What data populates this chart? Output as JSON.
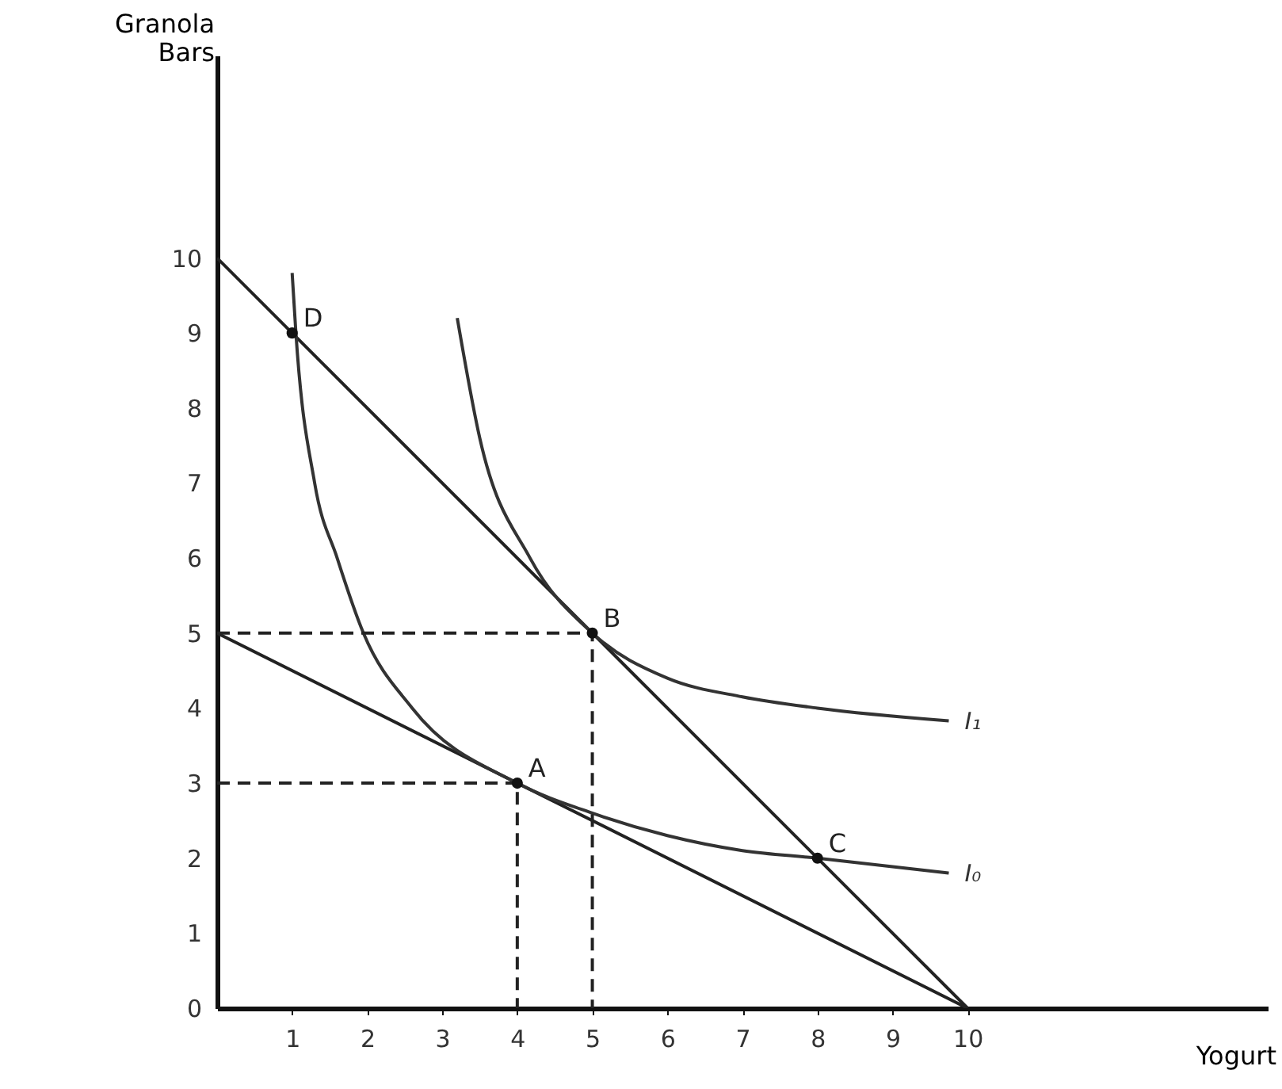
{
  "chart_data": {
    "type": "line",
    "xlabel": "Yogurt",
    "ylabel": "Granola Bars",
    "xlim": [
      0,
      14
    ],
    "ylim": [
      0,
      12.7
    ],
    "xticks": [
      1,
      2,
      3,
      4,
      5,
      6,
      7,
      8,
      9,
      10
    ],
    "yticks": [
      0,
      1,
      2,
      3,
      4,
      5,
      6,
      7,
      8,
      9,
      10
    ],
    "grid": false,
    "series": [
      {
        "color": "#222222",
        "line_style": "solid",
        "x": [
          0,
          10
        ],
        "values": [
          10,
          0
        ]
      },
      {
        "color": "#222222",
        "line_style": "solid",
        "x": [
          0,
          10
        ],
        "values": [
          5,
          0
        ]
      },
      {
        "name": "I₁",
        "color": "#333333",
        "line_style": "solid",
        "x": [
          3.2,
          3.5,
          4.17,
          5,
          6,
          7,
          8,
          9.75
        ],
        "values": [
          9.2,
          7.6,
          6,
          5,
          4.4,
          4.15,
          4,
          3.83
        ]
      },
      {
        "name": "I₀",
        "color": "#333333",
        "line_style": "solid",
        "x": [
          1,
          1.05,
          1.3,
          1.6,
          1.95,
          2.6,
          4,
          5,
          6,
          7,
          8,
          9.75
        ],
        "values": [
          9.8,
          9,
          7,
          6,
          5,
          4,
          3,
          2.6,
          2.3,
          2.1,
          2,
          1.8
        ]
      },
      {
        "color": "#222222",
        "line_style": "dashed",
        "x": [
          0,
          5,
          5
        ],
        "values": [
          5,
          5,
          0
        ]
      },
      {
        "color": "#222222",
        "line_style": "dashed",
        "x": [
          0,
          4,
          4
        ],
        "values": [
          3,
          3,
          0
        ]
      },
      {
        "type": "scatter",
        "color": "#111111",
        "marker": "circle",
        "x": [
          4,
          5,
          8,
          1
        ],
        "values": [
          3,
          5,
          2,
          9
        ]
      }
    ],
    "annotations": [
      {
        "text": "A",
        "x": 4,
        "y": 3
      },
      {
        "text": "B",
        "x": 5,
        "y": 5
      },
      {
        "text": "C",
        "x": 8,
        "y": 2
      },
      {
        "text": "D",
        "x": 1,
        "y": 9
      }
    ]
  }
}
